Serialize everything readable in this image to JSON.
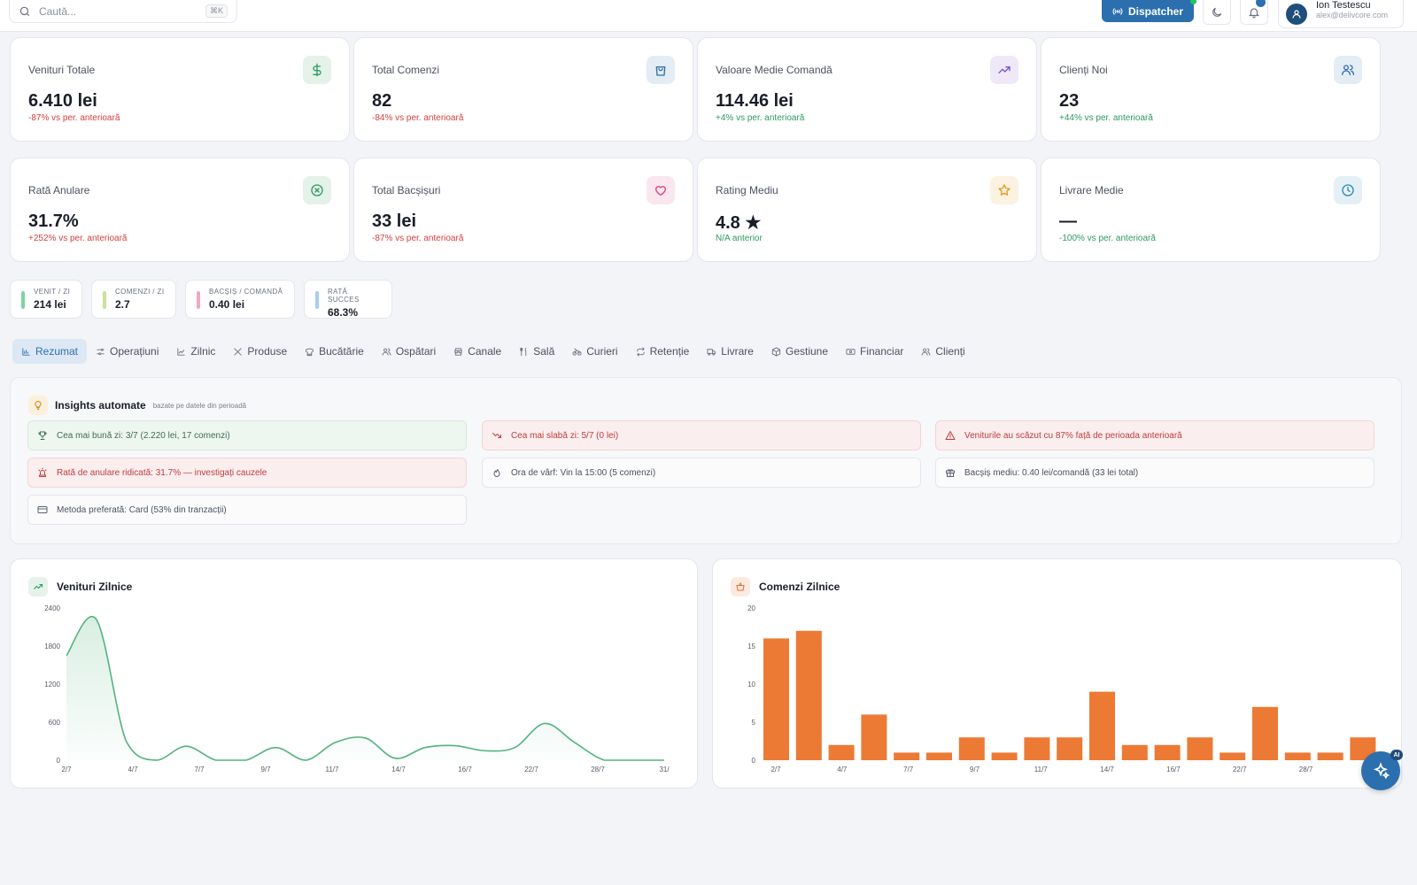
{
  "search": {
    "placeholder": "Caută...",
    "shortcut": "⌘K"
  },
  "header": {
    "dispatcher_label": "Dispatcher",
    "user_name": "Ion Testescu",
    "user_email": "alex@delivcore.com"
  },
  "kpis": [
    {
      "label": "Venituri Totale",
      "value": "6.410 lei",
      "change": "-87% vs per. anterioară",
      "trend": "negative",
      "icon": "dollar-icon",
      "color": "#2c9a5f"
    },
    {
      "label": "Total Comenzi",
      "value": "82",
      "change": "-84% vs per. anterioară",
      "trend": "negative",
      "icon": "shopping-bag-icon",
      "color": "#2c6fae"
    },
    {
      "label": "Valoare Medie Comandă",
      "value": "114.46 lei",
      "change": "+4% vs per. anterioară",
      "trend": "positive",
      "icon": "trending-up-icon",
      "color": "#7b4fc9"
    },
    {
      "label": "Clienți Noi",
      "value": "23",
      "change": "+44% vs per. anterioară",
      "trend": "positive",
      "icon": "users-icon",
      "color": "#2c6fae"
    },
    {
      "label": "Rată Anulare",
      "value": "31.7%",
      "change": "+252% vs per. anterioară",
      "trend": "negative",
      "icon": "x-circle-icon",
      "color": "#2c9a5f"
    },
    {
      "label": "Total Bacșișuri",
      "value": "33 lei",
      "change": "-87% vs per. anterioară",
      "trend": "negative",
      "icon": "heart-icon",
      "color": "#d6407a"
    },
    {
      "label": "Rating Mediu",
      "value": "4.8 ★",
      "change": "N/A anterior",
      "trend": "positive",
      "icon": "star-icon",
      "color": "#e09a1c"
    },
    {
      "label": "Livrare Medie",
      "value": "—",
      "change": "-100% vs per. anterioară",
      "trend": "positive",
      "icon": "clock-icon",
      "color": "#2c8ab8"
    }
  ],
  "mini_stats": [
    {
      "label": "VENIT / ZI",
      "value": "214 lei",
      "color": "#7fd3a4"
    },
    {
      "label": "COMENZI / ZI",
      "value": "2.7",
      "color": "#c9e39b"
    },
    {
      "label": "BACȘIȘ / COMANDĂ",
      "value": "0.40 lei",
      "color": "#f0a7c4"
    },
    {
      "label": "RATĂ SUCCES",
      "value": "68.3%",
      "color": "#a9cdef"
    }
  ],
  "tabs": [
    {
      "label": "Rezumat",
      "icon": "bar-chart-icon",
      "active": true
    },
    {
      "label": "Operațiuni",
      "icon": "sliders-icon"
    },
    {
      "label": "Zilnic",
      "icon": "line-chart-icon"
    },
    {
      "label": "Produse",
      "icon": "utensils-crossed-icon"
    },
    {
      "label": "Bucătărie",
      "icon": "chef-hat-icon"
    },
    {
      "label": "Ospătari",
      "icon": "users-icon"
    },
    {
      "label": "Canale",
      "icon": "store-icon"
    },
    {
      "label": "Sală",
      "icon": "utensils-icon"
    },
    {
      "label": "Curieri",
      "icon": "bike-icon"
    },
    {
      "label": "Retenție",
      "icon": "repeat-icon"
    },
    {
      "label": "Livrare",
      "icon": "truck-icon"
    },
    {
      "label": "Gestiune",
      "icon": "package-icon"
    },
    {
      "label": "Financiar",
      "icon": "banknote-icon"
    },
    {
      "label": "Clienți",
      "icon": "users-icon"
    }
  ],
  "insights": {
    "title": "Insights automate",
    "subtitle": "bazate pe datele din perioadă",
    "items": [
      {
        "text": "Cea mai bună zi: 3/7 (2.220 lei, 17 comenzi)",
        "tone": "green",
        "icon": "trophy-icon"
      },
      {
        "text": "Cea mai slabă zi: 5/7 (0 lei)",
        "tone": "red",
        "icon": "trending-down-icon"
      },
      {
        "text": "Veniturile au scăzut cu 87% față de perioada anterioară",
        "tone": "red",
        "icon": "alert-triangle-icon"
      },
      {
        "text": "Rată de anulare ridicată: 31.7% — investigați cauzele",
        "tone": "red",
        "icon": "siren-icon"
      },
      {
        "text": "Ora de vârf: Vin la 15:00 (5 comenzi)",
        "tone": "neutral",
        "icon": "flame-icon"
      },
      {
        "text": "Bacșiș mediu: 0.40 lei/comandă (33 lei total)",
        "tone": "neutral",
        "icon": "gift-icon"
      },
      {
        "text": "Metoda preferată: Card (53% din tranzacții)",
        "tone": "neutral",
        "icon": "credit-card-icon"
      }
    ]
  },
  "chart_data": [
    {
      "type": "area",
      "title": "Venituri Zilnice",
      "x_tick_labels": [
        "2/7",
        "4/7",
        "7/7",
        "9/7",
        "11/7",
        "14/7",
        "16/7",
        "22/7",
        "28/7",
        "31/"
      ],
      "y_ticks": [
        0,
        600,
        1200,
        1800,
        2400
      ],
      "ylim": [
        0,
        2400
      ],
      "values": [
        1650,
        2220,
        300,
        0,
        220,
        0,
        0,
        200,
        0,
        280,
        350,
        30,
        200,
        230,
        150,
        200,
        580,
        280,
        0,
        0,
        0
      ],
      "color": "#52b37e",
      "grid": false
    },
    {
      "type": "bar",
      "title": "Comenzi Zilnice",
      "x_tick_labels": [
        "2/7",
        "4/7",
        "7/7",
        "9/7",
        "11/7",
        "14/7",
        "16/7",
        "22/7",
        "28/7",
        "31/"
      ],
      "y_ticks": [
        0,
        5,
        10,
        15,
        20
      ],
      "ylim": [
        0,
        20
      ],
      "values": [
        16,
        17,
        2,
        6,
        1,
        1,
        3,
        1,
        3,
        3,
        9,
        2,
        2,
        3,
        1,
        7,
        1,
        1,
        3
      ],
      "color": "#ec7a34",
      "grid": false
    }
  ]
}
